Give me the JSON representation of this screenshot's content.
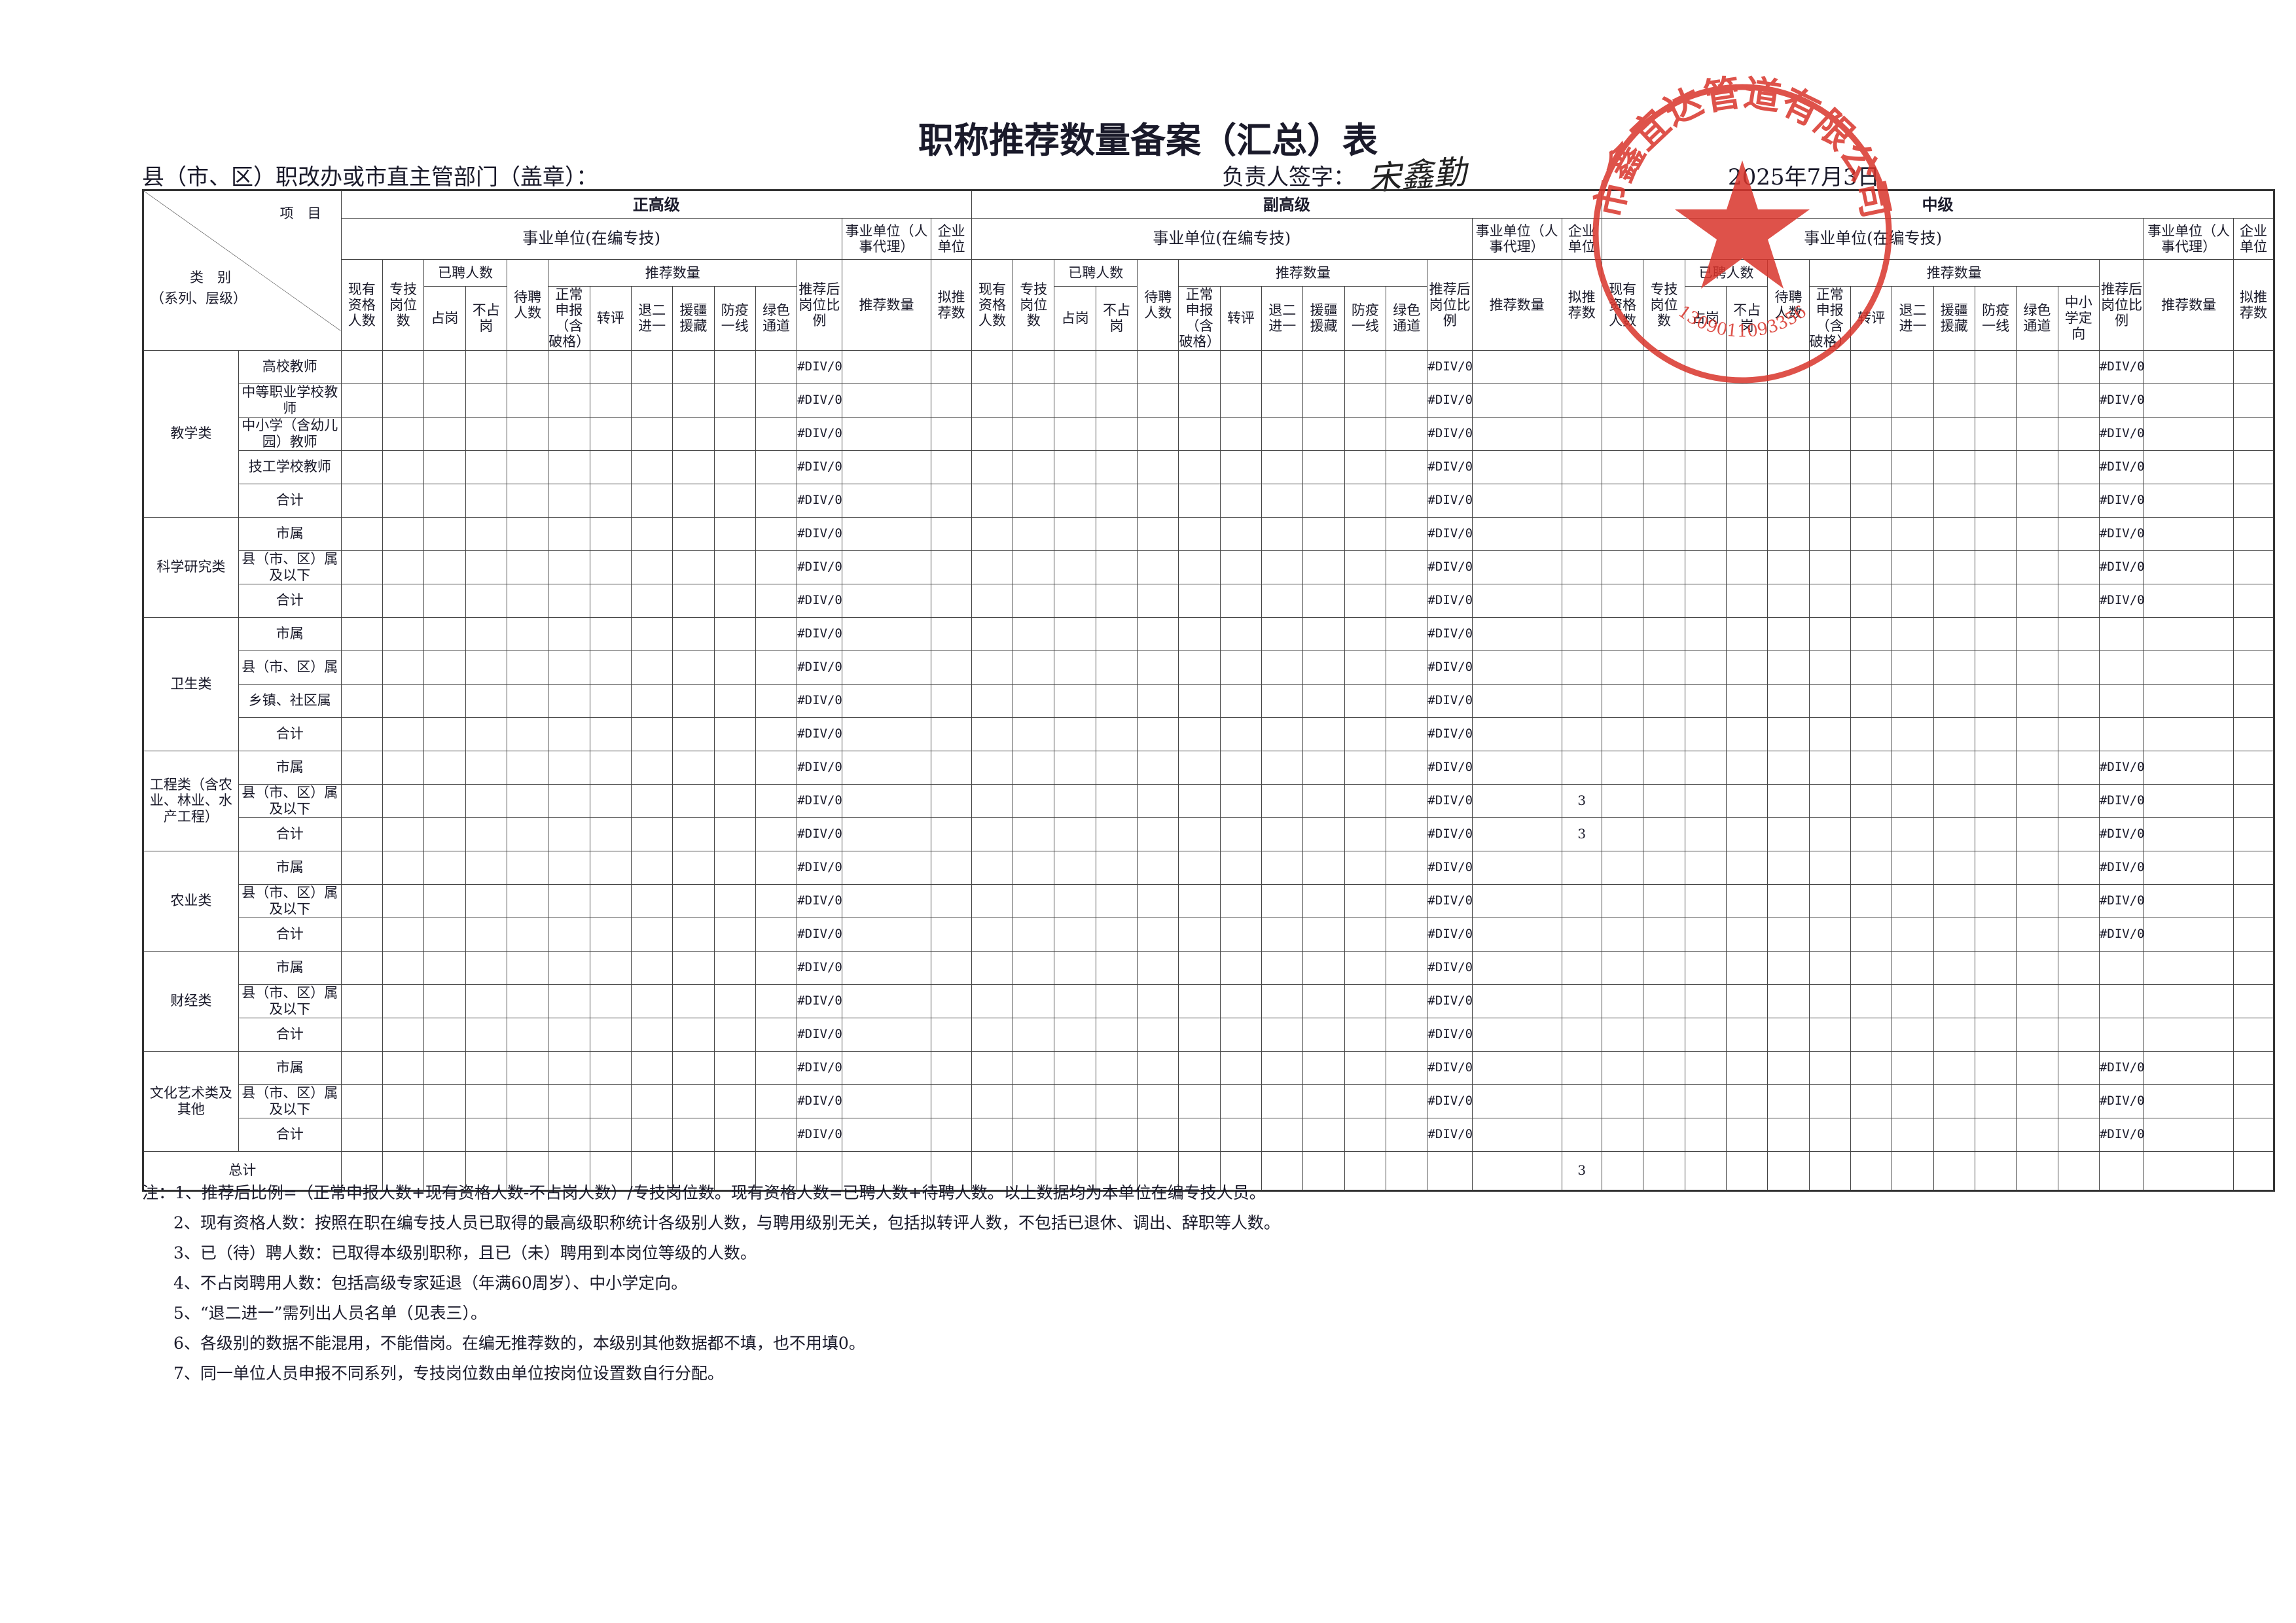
{
  "title": "职称推荐数量备案（汇总）表",
  "dept_label": "县（市、区）职改办或市直主管部门（盖章）：",
  "signer_label": "负责人签字：",
  "signature": "宋鑫勤",
  "date": "2025年7月3日",
  "stamp": {
    "text": "市鑫宜达管道有限公司",
    "code": "1309011093356"
  },
  "table": {
    "corner": {
      "item_label": "项　目",
      "category_label": "类　别",
      "category_sub": "（系列、层级）"
    },
    "levels": [
      {
        "name": "正高级",
        "public_label": "事业单位(在编专技)",
        "qualified": "现有资格人数",
        "posts": "专技岗位数",
        "hired": "已聘人数",
        "hired_cols": [
          "占岗",
          "不占岗"
        ],
        "waiting": "待聘人数",
        "recommend": "推荐数量",
        "recommend_cols": [
          "正常申报（含破格）",
          "转评",
          "退二进一",
          "援疆援藏",
          "防疫一线",
          "绿色通道"
        ],
        "ratio": "推荐后岗位比例",
        "agency_label": "事业单位（人事代理）",
        "agency_col": "推荐数量",
        "enterprise_label": "企业单位",
        "enterprise_col": "拟推荐数"
      },
      {
        "name": "副高级",
        "public_label": "事业单位(在编专技)",
        "qualified": "现有资格人数",
        "posts": "专技岗位数",
        "hired": "已聘人数",
        "hired_cols": [
          "占岗",
          "不占岗"
        ],
        "waiting": "待聘人数",
        "recommend": "推荐数量",
        "recommend_cols": [
          "正常申报（含破格）",
          "转评",
          "退二进一",
          "援疆援藏",
          "防疫一线",
          "绿色通道"
        ],
        "ratio": "推荐后岗位比例",
        "agency_label": "事业单位（人事代理）",
        "agency_col": "推荐数量",
        "enterprise_label": "企业单位",
        "enterprise_col": "拟推荐数"
      },
      {
        "name": "中级",
        "public_label": "事业单位(在编专技)",
        "qualified": "现有资格人数",
        "posts": "专技岗位数",
        "hired": "已聘人数",
        "hired_cols": [
          "占岗",
          "不占岗"
        ],
        "waiting": "待聘人数",
        "recommend": "推荐数量",
        "recommend_cols": [
          "正常申报（含破格）",
          "转评",
          "退二进一",
          "援疆援藏",
          "防疫一线",
          "绿色通道",
          "中小学定向"
        ],
        "ratio": "推荐后岗位比例",
        "agency_label": "事业单位（人事代理）",
        "agency_col": "推荐数量",
        "enterprise_label": "企业单位",
        "enterprise_col": "拟推荐数"
      }
    ],
    "groups": [
      {
        "name": "教学类",
        "rows": [
          {
            "item": "高校教师",
            "zheng_ratio": "#DIV/0!",
            "fu_ratio": "#DIV/0!",
            "zhong_ratio": "#DIV/0!"
          },
          {
            "item": "中等职业学校教师",
            "zheng_ratio": "#DIV/0!",
            "fu_ratio": "#DIV/0!",
            "zhong_ratio": "#DIV/0!"
          },
          {
            "item": "中小学（含幼儿园）教师",
            "zheng_ratio": "#DIV/0!",
            "fu_ratio": "#DIV/0!",
            "zhong_ratio": "#DIV/0!"
          },
          {
            "item": "技工学校教师",
            "zheng_ratio": "#DIV/0!",
            "fu_ratio": "#DIV/0!",
            "zhong_ratio": "#DIV/0!"
          },
          {
            "item": "合计",
            "zheng_ratio": "#DIV/0!",
            "fu_ratio": "#DIV/0!",
            "zhong_ratio": "#DIV/0!"
          }
        ]
      },
      {
        "name": "科学研究类",
        "rows": [
          {
            "item": "市属",
            "zheng_ratio": "#DIV/0!",
            "fu_ratio": "#DIV/0!",
            "zhong_ratio": "#DIV/0!"
          },
          {
            "item": "县（市、区）属及以下",
            "zheng_ratio": "#DIV/0!",
            "fu_ratio": "#DIV/0!",
            "zhong_ratio": "#DIV/0!"
          },
          {
            "item": "合计",
            "zheng_ratio": "#DIV/0!",
            "fu_ratio": "#DIV/0!",
            "zhong_ratio": "#DIV/0!"
          }
        ]
      },
      {
        "name": "卫生类",
        "rows": [
          {
            "item": "市属",
            "zheng_ratio": "#DIV/0!",
            "fu_ratio": "#DIV/0!"
          },
          {
            "item": "县（市、区）属",
            "zheng_ratio": "#DIV/0!",
            "fu_ratio": "#DIV/0!"
          },
          {
            "item": "乡镇、社区属",
            "zheng_ratio": "#DIV/0!",
            "fu_ratio": "#DIV/0!"
          },
          {
            "item": "合计",
            "zheng_ratio": "#DIV/0!",
            "fu_ratio": "#DIV/0!"
          }
        ]
      },
      {
        "name": "工程类（含农业、林业、水产工程）",
        "rows": [
          {
            "item": "市属",
            "zheng_ratio": "#DIV/0!",
            "fu_ratio": "#DIV/0!",
            "zhong_ratio": "#DIV/0!"
          },
          {
            "item": "县（市、区）属及以下",
            "zheng_ratio": "#DIV/0!",
            "fu_ratio": "#DIV/0!",
            "fu_enterprise": "3",
            "zhong_ratio": "#DIV/0!"
          },
          {
            "item": "合计",
            "zheng_ratio": "#DIV/0!",
            "fu_ratio": "#DIV/0!",
            "fu_enterprise": "3",
            "zhong_ratio": "#DIV/0!"
          }
        ]
      },
      {
        "name": "农业类",
        "rows": [
          {
            "item": "市属",
            "zheng_ratio": "#DIV/0!",
            "fu_ratio": "#DIV/0!",
            "zhong_ratio": "#DIV/0!"
          },
          {
            "item": "县（市、区）属及以下",
            "zheng_ratio": "#DIV/0!",
            "fu_ratio": "#DIV/0!",
            "zhong_ratio": "#DIV/0!"
          },
          {
            "item": "合计",
            "zheng_ratio": "#DIV/0!",
            "fu_ratio": "#DIV/0!",
            "zhong_ratio": "#DIV/0!"
          }
        ]
      },
      {
        "name": "财经类",
        "rows": [
          {
            "item": "市属",
            "zheng_ratio": "#DIV/0!",
            "fu_ratio": "#DIV/0!"
          },
          {
            "item": "县（市、区）属及以下",
            "zheng_ratio": "#DIV/0!",
            "fu_ratio": "#DIV/0!"
          },
          {
            "item": "合计",
            "zheng_ratio": "#DIV/0!",
            "fu_ratio": "#DIV/0!"
          }
        ]
      },
      {
        "name": "文化艺术类及其他",
        "rows": [
          {
            "item": "市属",
            "zheng_ratio": "#DIV/0!",
            "fu_ratio": "#DIV/0!",
            "zhong_ratio": "#DIV/0!"
          },
          {
            "item": "县（市、区）属及以下",
            "zheng_ratio": "#DIV/0!",
            "fu_ratio": "#DIV/0!",
            "zhong_ratio": "#DIV/0!"
          },
          {
            "item": "合计",
            "zheng_ratio": "#DIV/0!",
            "fu_ratio": "#DIV/0!",
            "zhong_ratio": "#DIV/0!"
          }
        ]
      }
    ],
    "total": {
      "label": "总计",
      "fu_enterprise": "3"
    }
  },
  "notes": {
    "label": "注：",
    "lines": [
      "1、推荐后比例=（正常申报人数+现有资格人数-不占岗人数）/专技岗位数。现有资格人数=已聘人数+待聘人数。以上数据均为本单位在编专技人员。",
      "2、现有资格人数：按照在职在编专技人员已取得的最高级职称统计各级别人数，与聘用级别无关，包括拟转评人数，不包括已退休、调出、辞职等人数。",
      "3、已（待）聘人数：已取得本级别职称，且已（未）聘用到本岗位等级的人数。",
      "4、不占岗聘用人数：包括高级专家延退（年满60周岁）、中小学定向。",
      "5、“退二进一”需列出人员名单（见表三）。",
      "6、各级别的数据不能混用，不能借岗。在编无推荐数的，本级别其他数据都不填，也不用填0。",
      "7、同一单位人员申报不同系列，专技岗位数由单位按岗位设置数自行分配。"
    ]
  }
}
